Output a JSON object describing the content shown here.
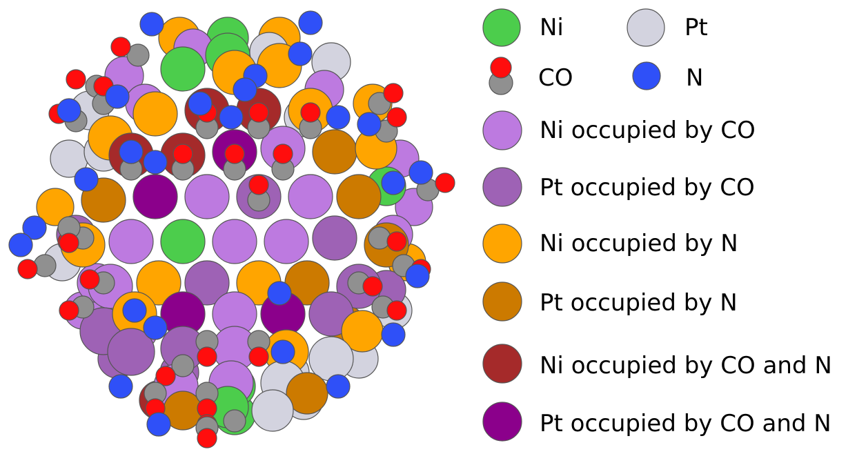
{
  "colors": {
    "ni": "#4ccd4c",
    "pt": "#d3d3df",
    "ni_co": "#bd7ae0",
    "pt_co": "#9e62b5",
    "ni_n": "#ffa500",
    "pt_n": "#cc7a00",
    "ni_co_n": "#a52a2a",
    "pt_co_n": "#8b008b",
    "o": "#ff0d0d",
    "c": "#909090",
    "n": "#2f50f8"
  },
  "legend": {
    "ni": "Ni",
    "pt": "Pt",
    "co": "CO",
    "n": "N",
    "ni_co": "Ni occupied by CO",
    "pt_co": "Pt occupied by CO",
    "ni_n": "Ni occupied by N",
    "pt_n": "Pt occupied by N",
    "ni_co_n": "Ni occupied by CO and N",
    "pt_co_n": "Pt occupied by CO and N"
  }
}
